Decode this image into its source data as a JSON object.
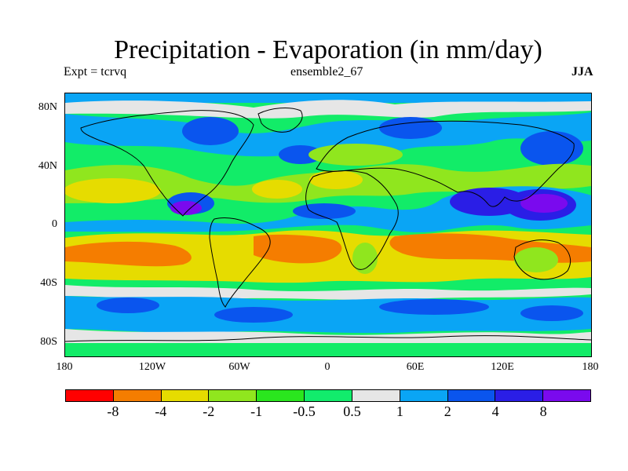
{
  "title": "Precipitation - Evaporation (in mm/day)",
  "expt": "Expt = tcrvq",
  "run": "ensemble2_67",
  "season": "JJA",
  "map": {
    "lon_range": [
      -180,
      180
    ],
    "lat_range": [
      -90,
      90
    ],
    "lat_ticks": [
      {
        "label": "80N",
        "value": 80
      },
      {
        "label": "40N",
        "value": 40
      },
      {
        "label": "0",
        "value": 0
      },
      {
        "label": "40S",
        "value": -40
      },
      {
        "label": "80S",
        "value": -80
      }
    ],
    "lon_ticks": [
      {
        "label": "180",
        "value": -180
      },
      {
        "label": "120W",
        "value": -120
      },
      {
        "label": "60W",
        "value": -60
      },
      {
        "label": "0",
        "value": 0
      },
      {
        "label": "60E",
        "value": 60
      },
      {
        "label": "120E",
        "value": 120
      },
      {
        "label": "180",
        "value": 180
      }
    ]
  },
  "colorbar": {
    "colors": [
      "#ff0000",
      "#f57d00",
      "#e6dc00",
      "#90e61e",
      "#2ae61e",
      "#12ec6c",
      "#e6e6e6",
      "#0aa5f5",
      "#0a55ee",
      "#2a1ee6",
      "#7a0aee"
    ],
    "labels": [
      "-8",
      "-4",
      "-2",
      "-1",
      "-0.5",
      "0.5",
      "1",
      "2",
      "4",
      "8"
    ]
  }
}
